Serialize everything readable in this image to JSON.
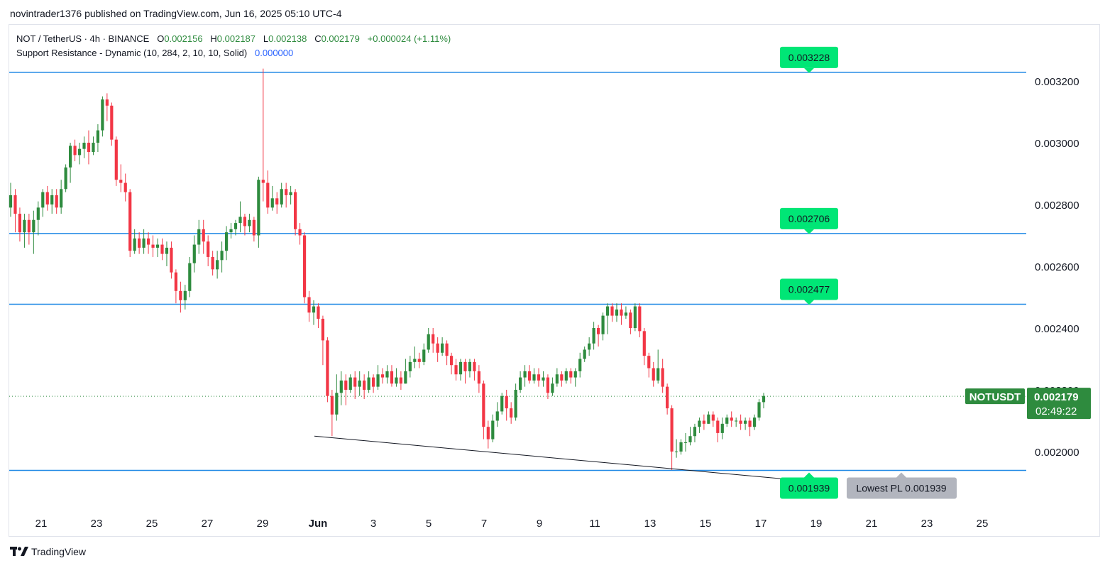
{
  "published": "novintrader1376 published on TradingView.com, Jun 16, 2025 05:10 UTC-4",
  "header": {
    "symbol": "NOT / TetherUS · 4h · BINANCE",
    "o_label": "O",
    "o": "0.002156",
    "h_label": "H",
    "h": "0.002187",
    "l_label": "L",
    "l": "0.002138",
    "c_label": "C",
    "c": "0.002179",
    "change": "+0.000024 (+1.11%)",
    "indicator": "Support Resistance - Dynamic (10, 284, 2, 10, 10, Solid)",
    "indicator_value": "0.000000"
  },
  "brand": "TradingView",
  "colors": {
    "up": "#2e8b3e",
    "down": "#f23645",
    "level": "#1e88e5",
    "tag": "#00e676",
    "trend": "#131722"
  },
  "chart_data": {
    "type": "candlestick",
    "price_axis": {
      "ticks": [
        0.0032,
        0.003,
        0.0028,
        0.0026,
        0.0024,
        0.0022,
        0.002
      ],
      "labels": [
        "0.003200",
        "0.003000",
        "0.002800",
        "0.002600",
        "0.002400",
        "0.002200",
        "0.002000"
      ]
    },
    "date_axis": {
      "labels": [
        "21",
        "23",
        "25",
        "27",
        "29",
        "Jun",
        "3",
        "5",
        "7",
        "9",
        "11",
        "13",
        "15",
        "17",
        "19",
        "21",
        "23",
        "25"
      ]
    },
    "levels": [
      {
        "value": 0.003228,
        "label": "0.003228"
      },
      {
        "value": 0.002706,
        "label": "0.002706"
      },
      {
        "value": 0.002477,
        "label": "0.002477"
      },
      {
        "value": 0.001939,
        "label": "0.001939"
      }
    ],
    "lowest_pl": "Lowest PL 0.001939",
    "last_price": {
      "symbol": "NOTUSDT",
      "value": 0.002179,
      "label": "0.002179",
      "countdown": "02:49:22"
    },
    "trendline": [
      {
        "date": "2025-05-31",
        "price": 0.00205
      },
      {
        "date": "2025-06-17",
        "price": 0.00191
      }
    ],
    "candles": [
      [
        0.00279,
        0.00283,
        0.00287,
        0.00276
      ],
      [
        0.00283,
        0.00277,
        0.00285,
        0.00271
      ],
      [
        0.00277,
        0.00271,
        0.00279,
        0.00268
      ],
      [
        0.00271,
        0.00275,
        0.00277,
        0.00266
      ],
      [
        0.00275,
        0.00271,
        0.00277,
        0.00267
      ],
      [
        0.00271,
        0.00275,
        0.00278,
        0.00264
      ],
      [
        0.00275,
        0.00279,
        0.00281,
        0.0027
      ],
      [
        0.00279,
        0.00284,
        0.00285,
        0.00276
      ],
      [
        0.00284,
        0.0028,
        0.00286,
        0.00278
      ],
      [
        0.0028,
        0.00283,
        0.00285,
        0.00277
      ],
      [
        0.00283,
        0.00279,
        0.00285,
        0.00277
      ],
      [
        0.00279,
        0.00285,
        0.00288,
        0.00277
      ],
      [
        0.00285,
        0.00292,
        0.00293,
        0.00284
      ],
      [
        0.00292,
        0.00299,
        0.003,
        0.00287
      ],
      [
        0.00299,
        0.00296,
        0.00301,
        0.00294
      ],
      [
        0.00296,
        0.00298,
        0.003,
        0.00293
      ],
      [
        0.00298,
        0.003,
        0.00302,
        0.00295
      ],
      [
        0.003,
        0.00297,
        0.00304,
        0.00293
      ],
      [
        0.00297,
        0.003,
        0.00302,
        0.00296
      ],
      [
        0.003,
        0.00304,
        0.00306,
        0.00297
      ],
      [
        0.00304,
        0.00314,
        0.00315,
        0.00302
      ],
      [
        0.00314,
        0.00312,
        0.00316,
        0.00307
      ],
      [
        0.00312,
        0.00301,
        0.00313,
        0.00299
      ],
      [
        0.00301,
        0.00288,
        0.00302,
        0.00286
      ],
      [
        0.00288,
        0.00287,
        0.00293,
        0.00284
      ],
      [
        0.00287,
        0.00284,
        0.0029,
        0.00281
      ],
      [
        0.00284,
        0.00265,
        0.00285,
        0.00263
      ],
      [
        0.00265,
        0.00269,
        0.00272,
        0.00264
      ],
      [
        0.00269,
        0.00266,
        0.00271,
        0.00264
      ],
      [
        0.00266,
        0.00269,
        0.00272,
        0.00264
      ],
      [
        0.00269,
        0.00267,
        0.00271,
        0.00264
      ],
      [
        0.00267,
        0.00266,
        0.0027,
        0.00263
      ],
      [
        0.00266,
        0.00267,
        0.00269,
        0.00263
      ],
      [
        0.00267,
        0.00264,
        0.00269,
        0.00262
      ],
      [
        0.00264,
        0.00266,
        0.00268,
        0.0026
      ],
      [
        0.00266,
        0.00258,
        0.00268,
        0.00256
      ],
      [
        0.00258,
        0.00252,
        0.00259,
        0.00248
      ],
      [
        0.00252,
        0.00249,
        0.00255,
        0.00245
      ],
      [
        0.00249,
        0.00252,
        0.00254,
        0.00246
      ],
      [
        0.00252,
        0.00261,
        0.00263,
        0.0025
      ],
      [
        0.00261,
        0.00267,
        0.0027,
        0.00258
      ],
      [
        0.00267,
        0.00272,
        0.00275,
        0.00264
      ],
      [
        0.00272,
        0.00268,
        0.00275,
        0.00264
      ],
      [
        0.00268,
        0.00263,
        0.0027,
        0.0026
      ],
      [
        0.00263,
        0.00259,
        0.00265,
        0.00257
      ],
      [
        0.00259,
        0.00262,
        0.00265,
        0.00256
      ],
      [
        0.00262,
        0.00265,
        0.00268,
        0.00258
      ],
      [
        0.00265,
        0.00271,
        0.00273,
        0.00262
      ],
      [
        0.00271,
        0.00272,
        0.00274,
        0.00269
      ],
      [
        0.00272,
        0.00274,
        0.00275,
        0.0027
      ],
      [
        0.00274,
        0.00276,
        0.00281,
        0.00271
      ],
      [
        0.00276,
        0.00273,
        0.00277,
        0.0027
      ],
      [
        0.00273,
        0.00275,
        0.00277,
        0.00271
      ],
      [
        0.00275,
        0.0027,
        0.00276,
        0.00268
      ],
      [
        0.0027,
        0.00288,
        0.00289,
        0.00266
      ],
      [
        0.00288,
        0.00287,
        0.00324,
        0.00281
      ],
      [
        0.00287,
        0.00279,
        0.00291,
        0.00277
      ],
      [
        0.00279,
        0.00282,
        0.00286,
        0.00278
      ],
      [
        0.00282,
        0.0028,
        0.00284,
        0.00277
      ],
      [
        0.0028,
        0.00285,
        0.00287,
        0.00279
      ],
      [
        0.00285,
        0.00283,
        0.00287,
        0.00279
      ],
      [
        0.00283,
        0.00284,
        0.00286,
        0.0028
      ],
      [
        0.00284,
        0.00272,
        0.00285,
        0.0027
      ],
      [
        0.00272,
        0.0027,
        0.00274,
        0.00267
      ],
      [
        0.0027,
        0.0025,
        0.00271,
        0.00248
      ],
      [
        0.0025,
        0.00245,
        0.00252,
        0.00242
      ],
      [
        0.00245,
        0.00247,
        0.00249,
        0.00241
      ],
      [
        0.00247,
        0.00243,
        0.00248,
        0.0024
      ],
      [
        0.00243,
        0.00236,
        0.00244,
        0.00228
      ],
      [
        0.00236,
        0.00218,
        0.00237,
        0.00216
      ],
      [
        0.00218,
        0.00212,
        0.0022,
        0.00205
      ],
      [
        0.00212,
        0.00219,
        0.00225,
        0.0021
      ],
      [
        0.00219,
        0.00223,
        0.00226,
        0.00215
      ],
      [
        0.00223,
        0.0022,
        0.00225,
        0.00215
      ],
      [
        0.0022,
        0.00224,
        0.00225,
        0.00219
      ],
      [
        0.00224,
        0.00221,
        0.00226,
        0.00217
      ],
      [
        0.00221,
        0.00223,
        0.00226,
        0.00218
      ],
      [
        0.00223,
        0.0022,
        0.00225,
        0.00217
      ],
      [
        0.0022,
        0.00224,
        0.00226,
        0.00219
      ],
      [
        0.00224,
        0.00221,
        0.00225,
        0.00219
      ],
      [
        0.00221,
        0.00225,
        0.00228,
        0.0022
      ],
      [
        0.00225,
        0.00224,
        0.00227,
        0.00222
      ],
      [
        0.00224,
        0.00226,
        0.00228,
        0.00222
      ],
      [
        0.00226,
        0.00222,
        0.00228,
        0.00221
      ],
      [
        0.00222,
        0.00224,
        0.00227,
        0.00221
      ],
      [
        0.00224,
        0.00222,
        0.00226,
        0.0022
      ],
      [
        0.00222,
        0.00226,
        0.0023,
        0.00222
      ],
      [
        0.00226,
        0.00229,
        0.00231,
        0.00224
      ],
      [
        0.00229,
        0.0023,
        0.00234,
        0.00227
      ],
      [
        0.0023,
        0.00229,
        0.00232,
        0.00227
      ],
      [
        0.00229,
        0.00233,
        0.00235,
        0.00228
      ],
      [
        0.00233,
        0.00238,
        0.0024,
        0.00232
      ],
      [
        0.00238,
        0.00235,
        0.0024,
        0.00232
      ],
      [
        0.00235,
        0.00232,
        0.00237,
        0.00229
      ],
      [
        0.00232,
        0.00235,
        0.00237,
        0.00231
      ],
      [
        0.00235,
        0.00231,
        0.00236,
        0.00228
      ],
      [
        0.00231,
        0.00228,
        0.00232,
        0.00225
      ],
      [
        0.00228,
        0.00225,
        0.0023,
        0.00223
      ],
      [
        0.00225,
        0.00229,
        0.0023,
        0.00223
      ],
      [
        0.00229,
        0.00226,
        0.0023,
        0.00222
      ],
      [
        0.00226,
        0.00229,
        0.0023,
        0.00224
      ],
      [
        0.00229,
        0.00226,
        0.0023,
        0.00223
      ],
      [
        0.00226,
        0.00222,
        0.00228,
        0.00219
      ],
      [
        0.00222,
        0.00208,
        0.00223,
        0.00204
      ],
      [
        0.00208,
        0.00204,
        0.0021,
        0.00201
      ],
      [
        0.00204,
        0.0021,
        0.00212,
        0.00203
      ],
      [
        0.0021,
        0.00213,
        0.00216,
        0.00208
      ],
      [
        0.00213,
        0.00218,
        0.00219,
        0.00212
      ],
      [
        0.00218,
        0.00214,
        0.0022,
        0.0021
      ],
      [
        0.00214,
        0.00211,
        0.00216,
        0.00209
      ],
      [
        0.00211,
        0.0022,
        0.00222,
        0.0021
      ],
      [
        0.0022,
        0.00224,
        0.00226,
        0.00219
      ],
      [
        0.00224,
        0.00226,
        0.00228,
        0.00221
      ],
      [
        0.00226,
        0.00223,
        0.00228,
        0.00222
      ],
      [
        0.00223,
        0.00225,
        0.00227,
        0.00222
      ],
      [
        0.00225,
        0.00223,
        0.00227,
        0.00221
      ],
      [
        0.00223,
        0.00224,
        0.00226,
        0.00221
      ],
      [
        0.00224,
        0.00219,
        0.00225,
        0.00217
      ],
      [
        0.00219,
        0.00222,
        0.00224,
        0.00218
      ],
      [
        0.00222,
        0.00225,
        0.00227,
        0.00221
      ],
      [
        0.00225,
        0.00223,
        0.00226,
        0.00221
      ],
      [
        0.00223,
        0.00226,
        0.00227,
        0.00222
      ],
      [
        0.00226,
        0.00224,
        0.00227,
        0.00222
      ],
      [
        0.00224,
        0.00226,
        0.00227,
        0.00221
      ],
      [
        0.00226,
        0.0023,
        0.00232,
        0.00224
      ],
      [
        0.0023,
        0.00233,
        0.00234,
        0.00229
      ],
      [
        0.00233,
        0.00235,
        0.00237,
        0.00231
      ],
      [
        0.00235,
        0.0024,
        0.00242,
        0.00233
      ],
      [
        0.0024,
        0.00238,
        0.00241,
        0.00234
      ],
      [
        0.00238,
        0.00244,
        0.00245,
        0.00236
      ],
      [
        0.00244,
        0.00247,
        0.00248,
        0.00238
      ],
      [
        0.00247,
        0.00244,
        0.00248,
        0.00242
      ],
      [
        0.00244,
        0.00246,
        0.00248,
        0.00242
      ],
      [
        0.00246,
        0.00244,
        0.00248,
        0.00241
      ],
      [
        0.00244,
        0.00245,
        0.00247,
        0.00243
      ],
      [
        0.00245,
        0.0024,
        0.00246,
        0.00238
      ],
      [
        0.0024,
        0.00247,
        0.00248,
        0.00239
      ],
      [
        0.00247,
        0.00239,
        0.00248,
        0.00237
      ],
      [
        0.00239,
        0.00231,
        0.0024,
        0.00228
      ],
      [
        0.00231,
        0.00227,
        0.00232,
        0.00224
      ],
      [
        0.00227,
        0.00223,
        0.00229,
        0.00221
      ],
      [
        0.00223,
        0.00227,
        0.00233,
        0.00222
      ],
      [
        0.00227,
        0.00221,
        0.0023,
        0.00219
      ],
      [
        0.00221,
        0.00214,
        0.00222,
        0.00212
      ],
      [
        0.00214,
        0.002,
        0.00215,
        0.00194
      ],
      [
        0.002,
        0.002,
        0.00204,
        0.00198
      ],
      [
        0.002,
        0.00203,
        0.00204,
        0.00199
      ],
      [
        0.00203,
        0.00203,
        0.00206,
        0.002
      ],
      [
        0.00203,
        0.00205,
        0.00208,
        0.00202
      ],
      [
        0.00205,
        0.00208,
        0.00209,
        0.00203
      ],
      [
        0.00208,
        0.0021,
        0.00211,
        0.00206
      ],
      [
        0.0021,
        0.00209,
        0.00212,
        0.00207
      ],
      [
        0.00209,
        0.00212,
        0.00213,
        0.00209
      ],
      [
        0.00212,
        0.0021,
        0.00213,
        0.00208
      ],
      [
        0.0021,
        0.00206,
        0.00211,
        0.00203
      ],
      [
        0.00206,
        0.00209,
        0.00211,
        0.00204
      ],
      [
        0.00209,
        0.00211,
        0.00212,
        0.00208
      ],
      [
        0.00211,
        0.0021,
        0.00213,
        0.00208
      ],
      [
        0.0021,
        0.0021,
        0.00211,
        0.00208
      ],
      [
        0.0021,
        0.00209,
        0.00212,
        0.00207
      ],
      [
        0.00209,
        0.0021,
        0.00211,
        0.00207
      ],
      [
        0.0021,
        0.00208,
        0.00211,
        0.00205
      ],
      [
        0.00208,
        0.00211,
        0.00212,
        0.00207
      ],
      [
        0.00211,
        0.00216,
        0.00217,
        0.0021
      ],
      [
        0.00216,
        0.00218,
        0.00219,
        0.00214
      ]
    ]
  }
}
